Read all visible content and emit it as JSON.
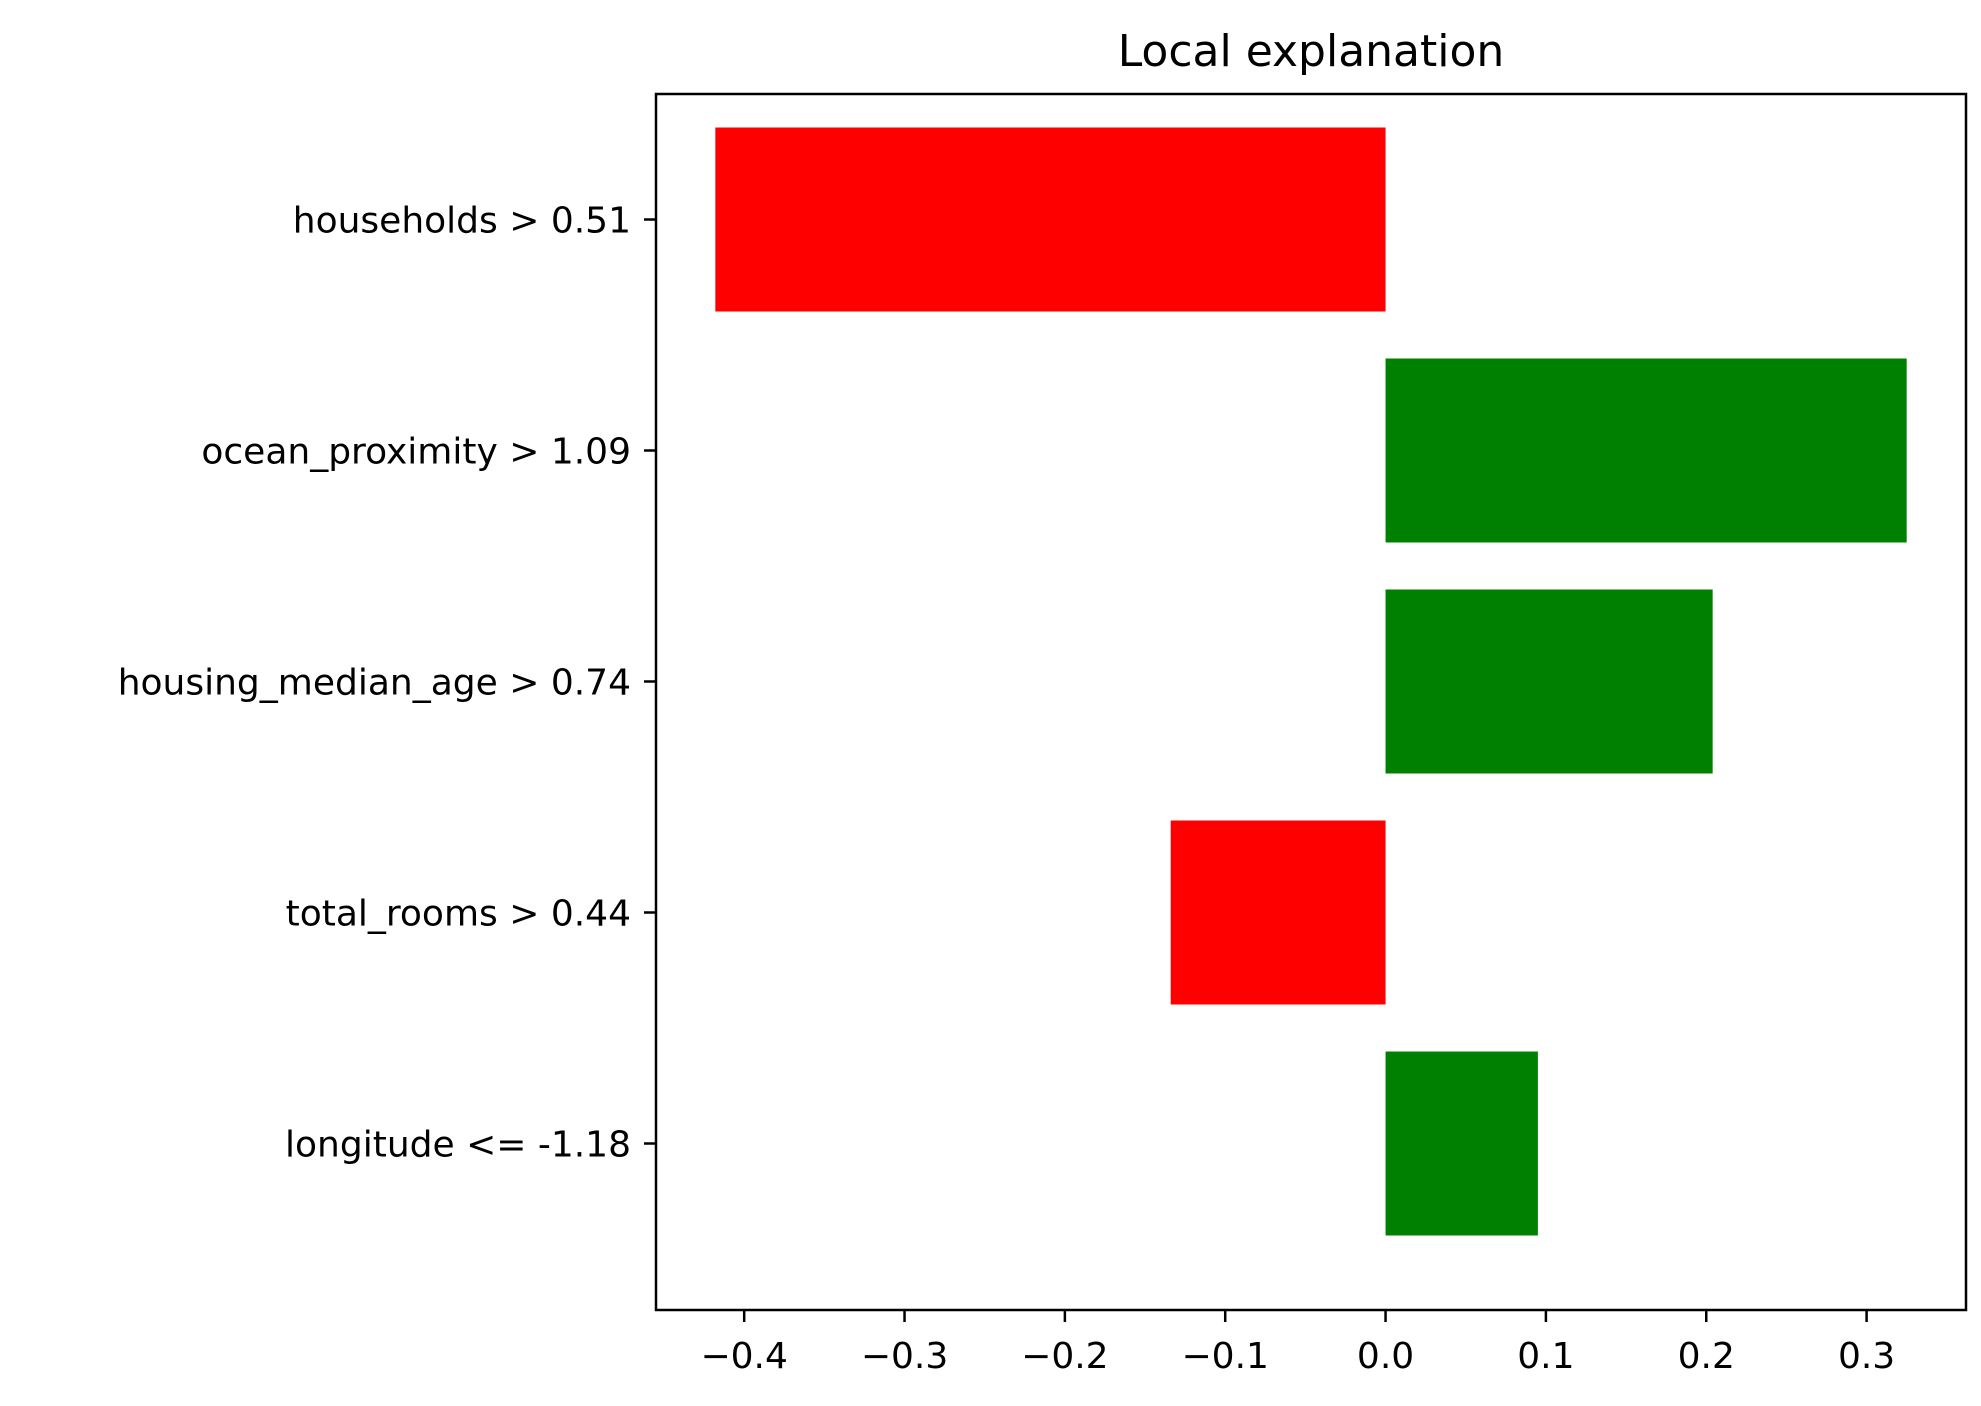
{
  "chart_data": {
    "type": "bar",
    "orientation": "horizontal",
    "title": "Local explanation",
    "xlabel": "",
    "ylabel": "",
    "categories": [
      "households > 0.51",
      "ocean_proximity > 1.09",
      "housing_median_age > 0.74",
      "total_rooms > 0.44",
      "longitude <= -1.18"
    ],
    "values": [
      -0.418,
      0.325,
      0.204,
      -0.134,
      0.095
    ],
    "colors": [
      "#ff0000",
      "#008000",
      "#008000",
      "#ff0000",
      "#008000"
    ],
    "xlim": [
      -0.455,
      0.362
    ],
    "xticks": [
      -0.4,
      -0.3,
      -0.2,
      -0.1,
      0.0,
      0.1,
      0.2,
      0.3
    ],
    "xtick_labels": [
      "−0.4",
      "−0.3",
      "−0.2",
      "−0.1",
      "0.0",
      "0.1",
      "0.2",
      "0.3"
    ],
    "grid": false,
    "legend": "none"
  }
}
